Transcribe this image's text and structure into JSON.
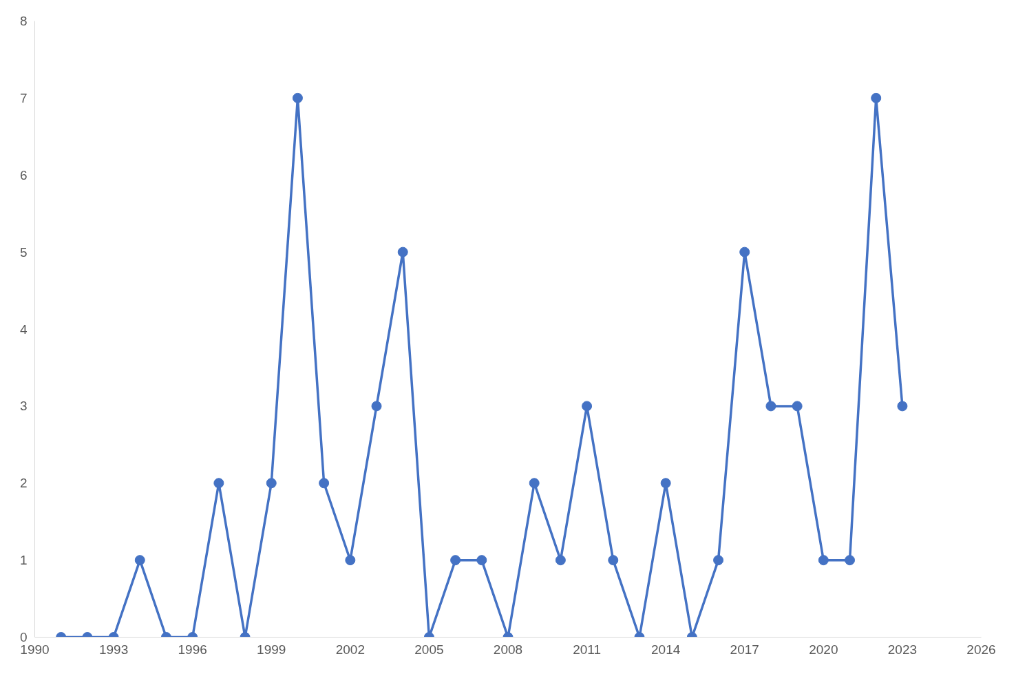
{
  "chart_data": {
    "type": "line",
    "x": [
      1991,
      1992,
      1993,
      1994,
      1995,
      1996,
      1997,
      1998,
      1999,
      2000,
      2001,
      2002,
      2003,
      2004,
      2005,
      2006,
      2007,
      2008,
      2009,
      2010,
      2011,
      2012,
      2013,
      2014,
      2015,
      2016,
      2017,
      2018,
      2019,
      2020,
      2021,
      2022,
      2023
    ],
    "series": [
      {
        "color": "#4472c4",
        "values": [
          0,
          0,
          0,
          1,
          0,
          0,
          2,
          0,
          2,
          7,
          2,
          1,
          3,
          5,
          0,
          1,
          1,
          0,
          2,
          1,
          3,
          1,
          0,
          2,
          0,
          1,
          5,
          3,
          3,
          1,
          1,
          7,
          3
        ]
      }
    ],
    "xlim": [
      1990,
      2026
    ],
    "xticks": [
      1990,
      1993,
      1996,
      1999,
      2002,
      2005,
      2008,
      2011,
      2014,
      2017,
      2020,
      2023,
      2026
    ],
    "ylim": [
      0,
      8
    ],
    "yticks": [
      0,
      1,
      2,
      3,
      4,
      5,
      6,
      7,
      8
    ],
    "grid": false,
    "marker": "circle",
    "line_style": "solid"
  }
}
